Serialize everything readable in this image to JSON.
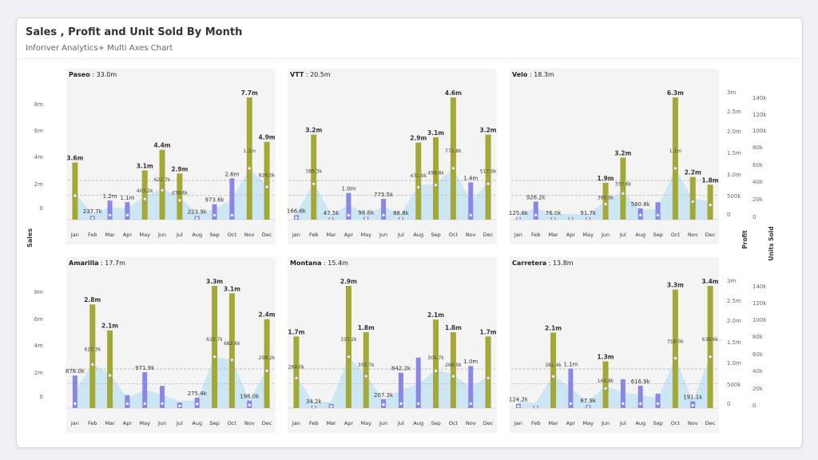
{
  "header": {
    "title": "Sales , Profit and Unit Sold By Month",
    "subtitle": "Inforiver Analytics+ Multi Axes Chart"
  },
  "axes": {
    "sales_label": "Sales",
    "profit_label": "Profit",
    "units_label": "Units Sold",
    "sales_ticks": [
      "0",
      "2m",
      "4m",
      "6m",
      "8m"
    ],
    "profit_ticks": [
      "0",
      "500k",
      "1.0m",
      "1.5m",
      "2.0m",
      "2.5m",
      "3m"
    ],
    "units_ticks": [
      "0",
      "20k",
      "40k",
      "60k",
      "80k",
      "100k",
      "120k",
      "140k"
    ]
  },
  "colors": {
    "sales_positive": "#a3a836",
    "sales_negative": "#8a86e6",
    "profit_area": "#bfe2f4",
    "reference_line": "#b9b9b9",
    "panel_background": "#f4f4f4"
  },
  "chart_data": {
    "type": "bar",
    "categories": [
      "Jan",
      "Feb",
      "Mar",
      "Apr",
      "May",
      "Jun",
      "Jul",
      "Aug",
      "Sep",
      "Oct",
      "Nov",
      "Dec"
    ],
    "panels": [
      {
        "name": "Paseo",
        "total": "33.0m",
        "sales": [
          3.6,
          0.24,
          1.2,
          1.1,
          3.1,
          4.4,
          2.9,
          0.22,
          0.97,
          2.6,
          7.7,
          4.9
        ],
        "bar_types": [
          "pos",
          "neg",
          "neg",
          "neg",
          "pos",
          "pos",
          "pos",
          "neg",
          "neg",
          "neg",
          "pos",
          "pos"
        ],
        "labels": [
          "3.6m",
          "237.7k",
          "1.2m",
          "1.1m",
          "3.1m",
          "4.4m",
          "2.9m",
          "223.9k",
          "973.6k",
          "2.6m",
          "7.7m",
          "4.9m"
        ],
        "profit_labels": [
          "",
          "",
          "",
          "",
          "403.2k",
          "622.7k",
          "438.6k",
          "",
          "",
          "",
          "1.1m",
          "826.0k"
        ]
      },
      {
        "name": "VTT",
        "total": "20.5m",
        "sales": [
          0.17,
          3.2,
          0.05,
          1.0,
          0.1,
          0.78,
          0.09,
          2.9,
          3.1,
          4.6,
          1.4,
          3.2
        ],
        "bar_types": [
          "neg",
          "pos",
          "neg",
          "neg",
          "neg",
          "neg",
          "neg",
          "pos",
          "pos",
          "pos",
          "neg",
          "pos"
        ],
        "labels": [
          "166.6k",
          "3.2m",
          "47.5k",
          "1.0m",
          "98.6k",
          "775.5k",
          "88.8k",
          "2.9m",
          "3.1m",
          "4.6m",
          "1.4m",
          "3.2m"
        ],
        "profit_labels": [
          "",
          "385.3k",
          "",
          "",
          "",
          "",
          "",
          "431.9k",
          "498.8k",
          "771.8k",
          "",
          "517.0k"
        ]
      },
      {
        "name": "Velo",
        "total": "18.3m",
        "sales": [
          0.13,
          0.93,
          0.08,
          0.12,
          0.09,
          1.9,
          3.2,
          0.58,
          0.9,
          6.3,
          2.2,
          1.8
        ],
        "bar_types": [
          "neg",
          "neg",
          "neg",
          "neg",
          "neg",
          "pos",
          "pos",
          "neg",
          "neg",
          "pos",
          "pos",
          "pos"
        ],
        "labels": [
          "125.6k",
          "926.2k",
          "76.0k",
          "",
          "91.7k",
          "1.9m",
          "3.2m",
          "580.8k",
          "",
          "6.3m",
          "2.2m",
          "1.8m"
        ],
        "profit_labels": [
          "",
          "",
          "",
          "",
          "",
          "385.9k",
          "337.6k",
          "",
          "",
          "1.1m",
          "",
          ""
        ]
      },
      {
        "name": "Amarilla",
        "total": "17.7m",
        "sales": [
          0.88,
          2.8,
          2.1,
          0.35,
          0.97,
          0.6,
          0.15,
          0.28,
          3.3,
          3.1,
          0.2,
          2.4
        ],
        "bar_types": [
          "neg",
          "pos",
          "pos",
          "neg",
          "neg",
          "neg",
          "neg",
          "neg",
          "pos",
          "pos",
          "neg",
          "pos"
        ],
        "labels": [
          "878.0k",
          "2.8m",
          "2.1m",
          "",
          "971.9k",
          "",
          "",
          "275.4k",
          "3.3m",
          "3.1m",
          "198.0k",
          "2.4m"
        ],
        "profit_labels": [
          "",
          "623.3k",
          "",
          "",
          "",
          "",
          "",
          "",
          "633.7k",
          "682.6k",
          "",
          "298.2k"
        ]
      },
      {
        "name": "Montana",
        "total": "15.4m",
        "sales": [
          1.7,
          0.03,
          0.1,
          2.9,
          1.8,
          0.21,
          0.84,
          1.2,
          2.1,
          1.8,
          1.0,
          1.7
        ],
        "bar_types": [
          "pos",
          "neg",
          "neg",
          "pos",
          "pos",
          "neg",
          "neg",
          "neg",
          "pos",
          "pos",
          "neg",
          "pos"
        ],
        "labels": [
          "1.7m",
          "34.2k",
          "",
          "2.9m",
          "1.8m",
          "207.3k",
          "842.2k",
          "",
          "2.1m",
          "1.8m",
          "1.0m",
          "1.7m"
        ],
        "profit_labels": [
          "264.0k",
          "",
          "",
          "337.2k",
          "355.7k",
          "",
          "",
          "",
          "304.7k",
          "266.0k",
          "",
          ""
        ]
      },
      {
        "name": "Carretera",
        "total": "13.8m",
        "sales": [
          0.12,
          0.03,
          2.1,
          1.1,
          0.09,
          1.3,
          0.8,
          0.62,
          0.4,
          3.3,
          0.19,
          3.4
        ],
        "bar_types": [
          "neg",
          "neg",
          "pos",
          "neg",
          "neg",
          "pos",
          "neg",
          "neg",
          "neg",
          "pos",
          "neg",
          "pos"
        ],
        "labels": [
          "124.2k",
          "",
          "2.1m",
          "1.1m",
          "87.9k",
          "1.3m",
          "",
          "616.9k",
          "",
          "3.3m",
          "191.1k",
          "3.4m"
        ],
        "profit_labels": [
          "",
          "",
          "381.4k",
          "",
          "",
          "160.8k",
          "",
          "",
          "",
          "316.0k",
          "",
          "638.6k"
        ]
      }
    ]
  }
}
